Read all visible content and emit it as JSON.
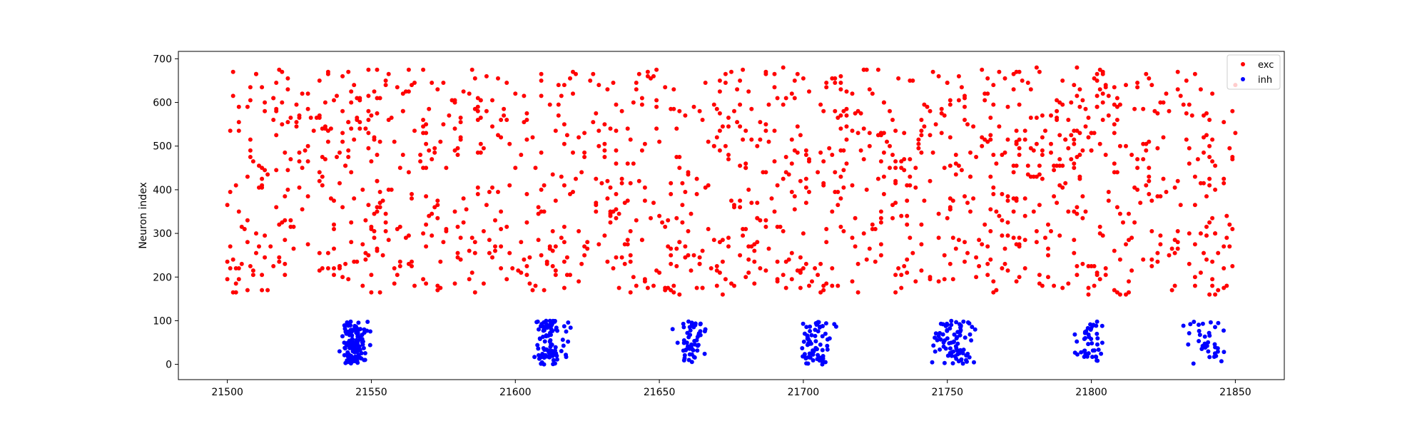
{
  "chart_data": {
    "type": "scatter",
    "title": "",
    "xlabel": "",
    "ylabel": "Neuron index",
    "xlim": [
      21483,
      21867
    ],
    "ylim": [
      -35,
      717
    ],
    "xticks": [
      21500,
      21550,
      21600,
      21650,
      21700,
      21750,
      21800,
      21850
    ],
    "yticks": [
      0,
      100,
      200,
      300,
      400,
      500,
      600,
      700
    ],
    "grid": false,
    "legend_position": "top-right",
    "exc_neuron_range": [
      160,
      680
    ],
    "inh_neuron_range": [
      0,
      100
    ],
    "series": [
      {
        "name": "exc",
        "color": "#ff0000",
        "marker": "circle",
        "x_range": [
          21500,
          21850
        ],
        "y_range": [
          160,
          680
        ],
        "approx_spike_count": 1400
      },
      {
        "name": "inh",
        "color": "#0000ff",
        "marker": "circle",
        "bursts": [
          {
            "center": 21544,
            "spread": 3.5,
            "count": 140
          },
          {
            "center": 21512,
            "spread": 0,
            "count": 0
          },
          {
            "center": 21612,
            "spread": 5,
            "count": 90
          },
          {
            "center": 21661,
            "spread": 4,
            "count": 55
          },
          {
            "center": 21704,
            "spread": 5,
            "count": 70
          },
          {
            "center": 21753,
            "spread": 6,
            "count": 80
          },
          {
            "center": 21800,
            "spread": 4,
            "count": 45
          },
          {
            "center": 21840,
            "spread": 6,
            "count": 35
          }
        ]
      }
    ]
  }
}
